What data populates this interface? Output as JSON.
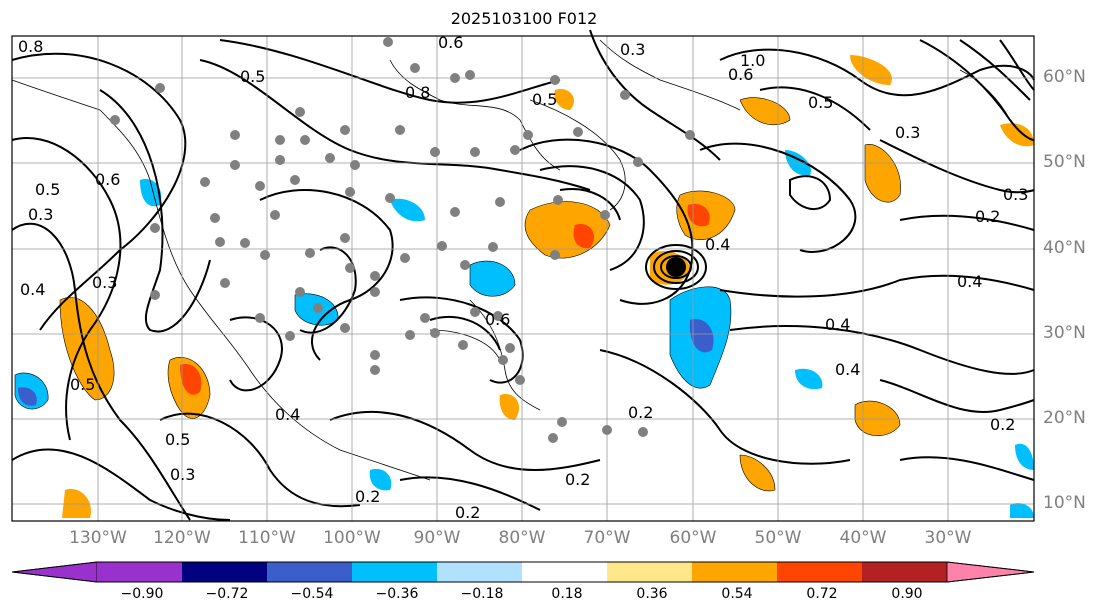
{
  "title": "2025103100 F012",
  "longitude_labels": [
    "130°W",
    "120°W",
    "110°W",
    "100°W",
    "90°W",
    "80°W",
    "70°W",
    "60°W",
    "50°W",
    "40°W",
    "30°W"
  ],
  "latitude_labels": [
    "60°N",
    "50°N",
    "40°N",
    "30°N",
    "20°N",
    "10°N"
  ],
  "contour_labels": [
    "0.8",
    "0.8",
    "0.6",
    "0.5",
    "0.3",
    "0.5",
    "0.3",
    "0.6",
    "0.5",
    "0.4",
    "0.3",
    "0.5",
    "0.4",
    "0.2",
    "0.2",
    "0.2",
    "0.2",
    "0.3",
    "0.4",
    "0.4",
    "1.0",
    "0.6",
    "0.5",
    "0.3",
    "0.2",
    "0.3",
    "0.4",
    "0.2",
    "0.4",
    "0.5",
    "0.6"
  ],
  "colorbar": {
    "ticks": [
      "−0.90",
      "−0.72",
      "−0.54",
      "−0.36",
      "−0.18",
      "0.18",
      "0.36",
      "0.54",
      "0.72",
      "0.90"
    ],
    "colors": [
      "#9932cc",
      "#000080",
      "#3a5fcd",
      "#00bfff",
      "#b0e2ff",
      "#ffffff",
      "#ffe78a",
      "#ffa500",
      "#ff4500",
      "#b22222",
      "#ff82ab"
    ]
  }
}
